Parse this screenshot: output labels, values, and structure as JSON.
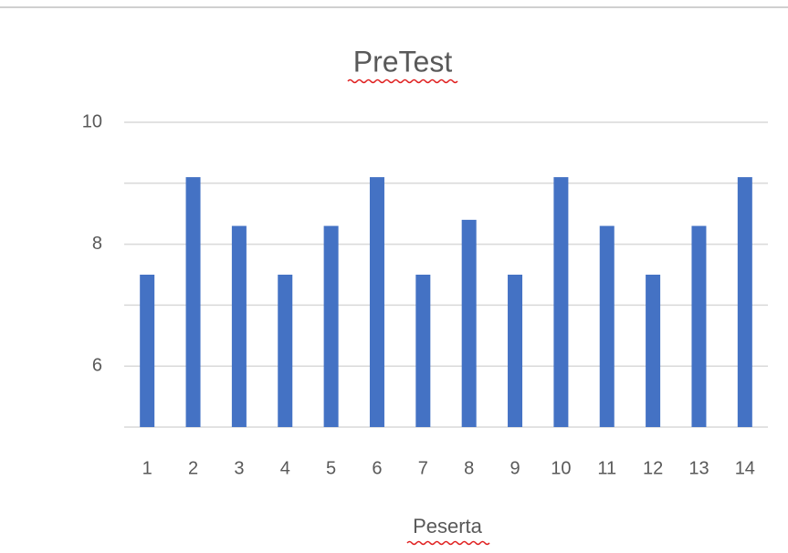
{
  "chart_data": {
    "type": "bar",
    "title": "PreTest",
    "x_label": "Peserta",
    "categories": [
      "1",
      "2",
      "3",
      "4",
      "5",
      "6",
      "7",
      "8",
      "9",
      "10",
      "11",
      "12",
      "13",
      "14"
    ],
    "values": [
      7.5,
      9.1,
      8.3,
      7.5,
      8.3,
      9.1,
      7.5,
      8.4,
      7.5,
      9.1,
      8.3,
      7.5,
      8.3,
      9.1
    ],
    "color": "#4472c4",
    "ylim": [
      5,
      10
    ],
    "yticks": [
      6,
      8,
      10
    ],
    "minor_yticks": [
      7,
      9
    ],
    "grid": true
  }
}
